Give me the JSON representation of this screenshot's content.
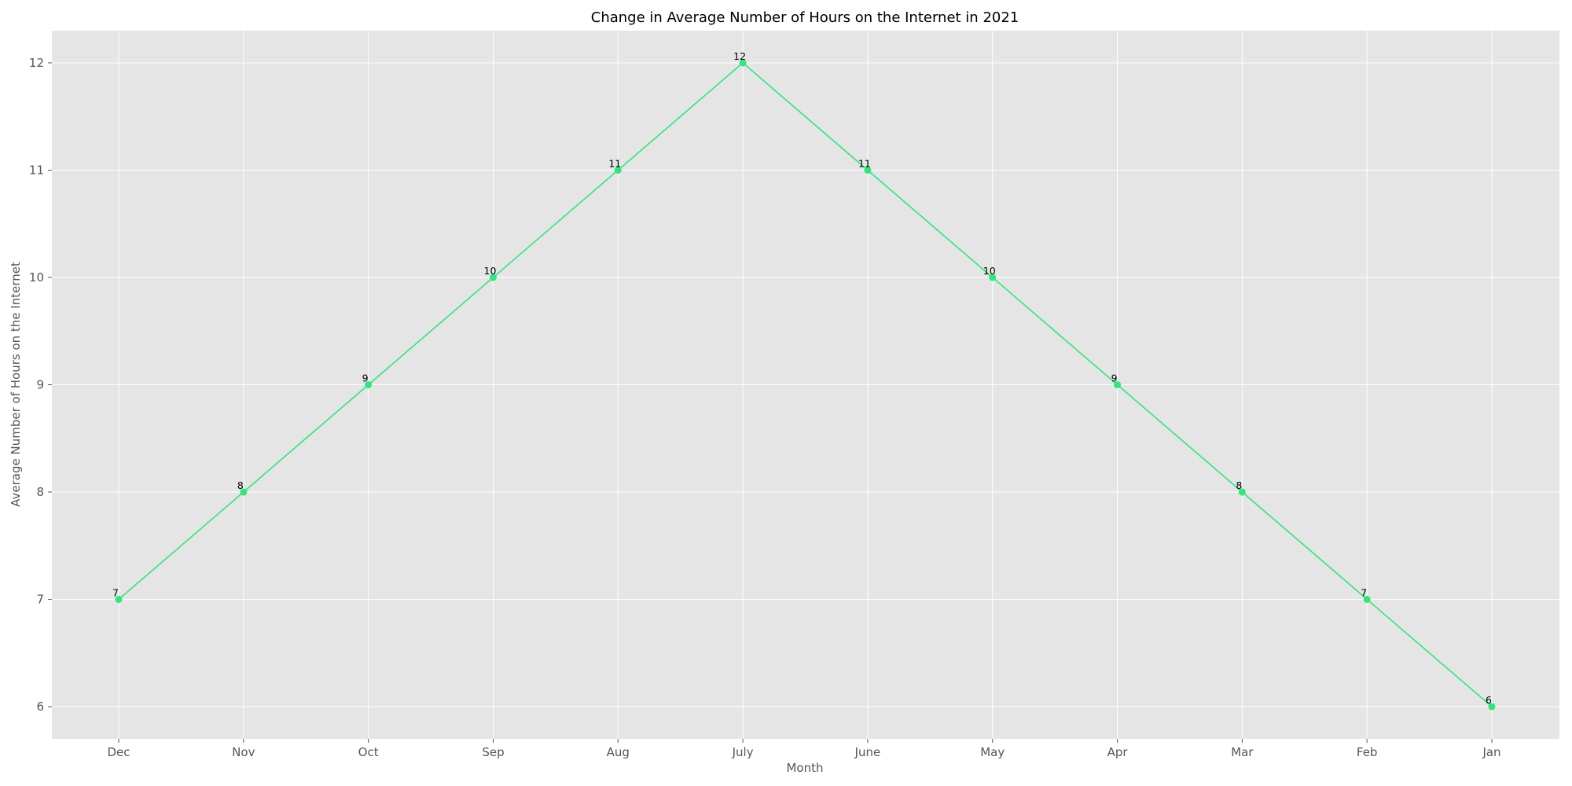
{
  "chart_data": {
    "type": "line",
    "title": "Change in Average Number of Hours on the Internet in 2021",
    "xlabel": "Month",
    "ylabel": "Average Number of Hours on the Internet",
    "categories": [
      "Dec",
      "Nov",
      "Oct",
      "Sep",
      "Aug",
      "July",
      "June",
      "May",
      "Apr",
      "Mar",
      "Feb",
      "Jan"
    ],
    "values": [
      7,
      8,
      9,
      10,
      11,
      12,
      11,
      10,
      9,
      8,
      7,
      6
    ],
    "ylim": [
      5.7,
      12.3
    ],
    "yticks": [
      6,
      7,
      8,
      9,
      10,
      11,
      12
    ],
    "grid": true,
    "line_color": "#2ee87a",
    "marker_color": "#2ee87a",
    "plot_background": "#e5e5e5",
    "grid_color": "#ffffff",
    "data_labels": true
  }
}
